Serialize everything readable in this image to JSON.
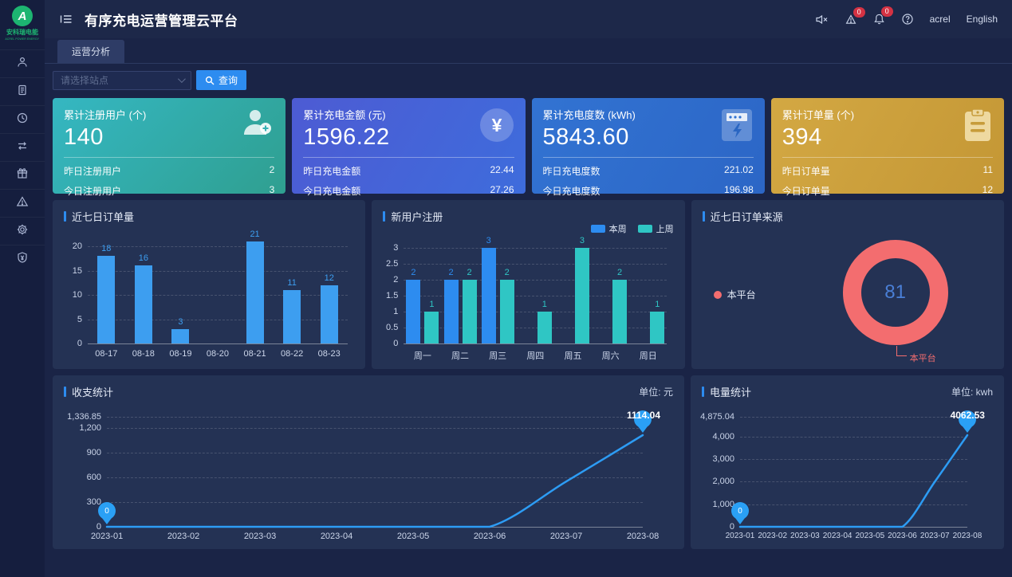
{
  "app": {
    "title": "有序充电运营管理云平台",
    "logo": {
      "mark": "A",
      "text": "安科瑞电能",
      "subtext": "ACREL POWER ENERGY"
    }
  },
  "header": {
    "username": "acrel",
    "language": "English",
    "alarm_count": "0",
    "message_count": "0"
  },
  "sidebar": {
    "items": [
      {
        "icon": "user-icon"
      },
      {
        "icon": "document-icon"
      },
      {
        "icon": "clock-icon"
      },
      {
        "icon": "transfer-icon"
      },
      {
        "icon": "gift-icon"
      },
      {
        "icon": "alarm-triangle-icon"
      },
      {
        "icon": "gear-icon"
      },
      {
        "icon": "shield-yen-icon"
      }
    ]
  },
  "tabs": [
    {
      "label": "运营分析",
      "active": true
    }
  ],
  "filter": {
    "station_select_placeholder": "请选择站点",
    "search_button": "查询"
  },
  "stat_cards": [
    {
      "title": "累计注册用户 (个)",
      "value": "140",
      "theme": "teal",
      "icon": "user-plus-icon",
      "rows": [
        {
          "label": "昨日注册用户",
          "value": "2"
        },
        {
          "label": "今日注册用户",
          "value": "3"
        }
      ]
    },
    {
      "title": "累计充电金额 (元)",
      "value": "1596.22",
      "theme": "indigo",
      "icon": "yen-circle-icon",
      "rows": [
        {
          "label": "昨日充电金额",
          "value": "22.44"
        },
        {
          "label": "今日充电金额",
          "value": "27.26"
        }
      ]
    },
    {
      "title": "累计充电度数 (kWh)",
      "value": "5843.60",
      "theme": "blue",
      "icon": "charge-meter-icon",
      "rows": [
        {
          "label": "昨日充电度数",
          "value": "221.02"
        },
        {
          "label": "今日充电度数",
          "value": "196.98"
        }
      ]
    },
    {
      "title": "累计订单量 (个)",
      "value": "394",
      "theme": "gold",
      "icon": "clipboard-icon",
      "rows": [
        {
          "label": "昨日订单量",
          "value": "11"
        },
        {
          "label": "今日订单量",
          "value": "12"
        }
      ]
    }
  ],
  "chart_data": [
    {
      "type": "bar",
      "title": "近七日订单量",
      "categories": [
        "08-17",
        "08-18",
        "08-19",
        "08-20",
        "08-21",
        "08-22",
        "08-23"
      ],
      "values": [
        18,
        16,
        3,
        0,
        21,
        11,
        12
      ],
      "yticks": [
        0,
        5,
        10,
        15,
        20
      ],
      "ymax": 21,
      "color": "#3d9ef0",
      "grid": true
    },
    {
      "type": "bar",
      "title": "新用户注册",
      "categories": [
        "周一",
        "周二",
        "周三",
        "周四",
        "周五",
        "周六",
        "周日"
      ],
      "series": [
        {
          "name": "本周",
          "color": "#2d8cf0",
          "values": [
            2,
            2,
            3,
            0,
            0,
            0,
            0
          ]
        },
        {
          "name": "上周",
          "color": "#2fc6c4",
          "values": [
            1,
            2,
            2,
            1,
            3,
            2,
            1
          ]
        }
      ],
      "yticks": [
        0,
        0.5,
        1,
        1.5,
        2,
        2.5,
        3
      ],
      "ymax": 3,
      "legend_position": "top-right",
      "grid": true
    },
    {
      "type": "pie",
      "title": "近七日订单来源",
      "center_label": "81",
      "slices": [
        {
          "name": "本平台",
          "value": 81,
          "color": "#f36d6f"
        }
      ],
      "legend_position": "left"
    },
    {
      "type": "line",
      "title": "收支统计",
      "unit": "单位: 元",
      "x": [
        "2023-01",
        "2023-02",
        "2023-03",
        "2023-04",
        "2023-05",
        "2023-06",
        "2023-07",
        "2023-08"
      ],
      "values": [
        0,
        0,
        0,
        0,
        0,
        0,
        550,
        1114.04
      ],
      "ytick_labels": [
        "0",
        "300",
        "600",
        "900",
        "1,200",
        "1,336.85"
      ],
      "ytick_values": [
        0,
        300,
        600,
        900,
        1200,
        1336.85
      ],
      "ymax": 1336.85,
      "color": "#2d9cf4",
      "first_point_label": "0",
      "last_point_label": "1114.04",
      "grid": true
    },
    {
      "type": "line",
      "title": "电量统计",
      "unit": "单位: kwh",
      "x": [
        "2023-01",
        "2023-02",
        "2023-03",
        "2023-04",
        "2023-05",
        "2023-06",
        "2023-07",
        "2023-08"
      ],
      "values": [
        0,
        0,
        0,
        0,
        0,
        0,
        2000,
        4062.53
      ],
      "ytick_labels": [
        "0",
        "1,000",
        "2,000",
        "3,000",
        "4,000",
        "4,875.04"
      ],
      "ytick_values": [
        0,
        1000,
        2000,
        3000,
        4000,
        4875.04
      ],
      "ymax": 4875.04,
      "color": "#2d9cf4",
      "first_point_label": "0",
      "last_point_label": "4062.53",
      "grid": true
    }
  ]
}
